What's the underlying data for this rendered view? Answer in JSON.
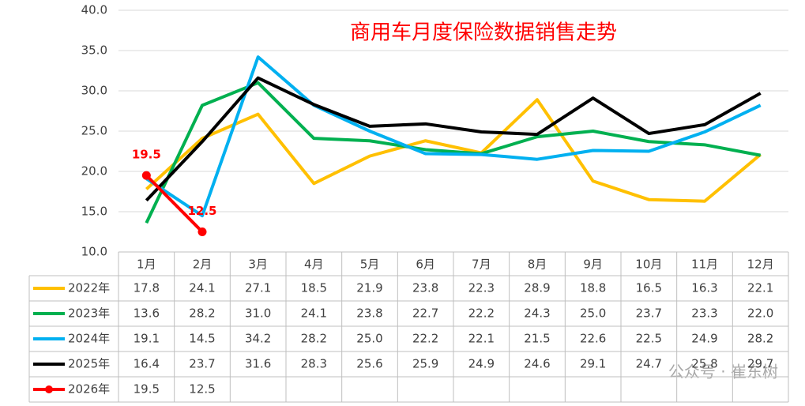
{
  "chart_data": {
    "type": "line",
    "title": "商用车月度保险数据销售走势",
    "categories": [
      "1月",
      "2月",
      "3月",
      "4月",
      "5月",
      "6月",
      "7月",
      "8月",
      "9月",
      "10月",
      "11月",
      "12月"
    ],
    "series": [
      {
        "name": "2022年",
        "color": "#ffc000",
        "values": [
          17.8,
          24.1,
          27.1,
          18.5,
          21.9,
          23.8,
          22.3,
          28.9,
          18.8,
          16.5,
          16.3,
          22.1
        ],
        "value_labels": [
          "17.8",
          "24.1",
          "27.1",
          "18.5",
          "21.9",
          "23.8",
          "22.3",
          "28.9",
          "18.8",
          "16.5",
          "16.3",
          "22.1"
        ]
      },
      {
        "name": "2023年",
        "color": "#00b050",
        "values": [
          13.6,
          28.2,
          31.0,
          24.1,
          23.8,
          22.7,
          22.2,
          24.3,
          25.0,
          23.7,
          23.3,
          22.0
        ],
        "value_labels": [
          "13.6",
          "28.2",
          "31.0",
          "24.1",
          "23.8",
          "22.7",
          "22.2",
          "24.3",
          "25.0",
          "23.7",
          "23.3",
          "22.0"
        ]
      },
      {
        "name": "2024年",
        "color": "#00b0f0",
        "values": [
          19.1,
          14.5,
          34.2,
          28.2,
          25.0,
          22.2,
          22.1,
          21.5,
          22.6,
          22.5,
          24.9,
          28.2
        ],
        "value_labels": [
          "19.1",
          "14.5",
          "34.2",
          "28.2",
          "25.0",
          "22.2",
          "22.1",
          "21.5",
          "22.6",
          "22.5",
          "24.9",
          "28.2"
        ]
      },
      {
        "name": "2025年",
        "color": "#000000",
        "values": [
          16.4,
          23.7,
          31.6,
          28.3,
          25.6,
          25.9,
          24.9,
          24.6,
          29.1,
          24.7,
          25.8,
          29.7
        ],
        "value_labels": [
          "16.4",
          "23.7",
          "31.6",
          "28.3",
          "25.6",
          "25.9",
          "24.9",
          "24.6",
          "29.1",
          "24.7",
          "25.8",
          "29.7"
        ]
      },
      {
        "name": "2026年",
        "color": "#ff0000",
        "markers": true,
        "data_labels": true,
        "values": [
          19.5,
          12.5,
          null,
          null,
          null,
          null,
          null,
          null,
          null,
          null,
          null,
          null
        ],
        "value_labels": [
          "19.5",
          "12.5",
          null,
          null,
          null,
          null,
          null,
          null,
          null,
          null,
          null,
          null
        ]
      }
    ],
    "ylim": [
      10,
      40
    ],
    "yticks": [
      {
        "value": 10,
        "label": "10.0"
      },
      {
        "value": 15,
        "label": "15.0"
      },
      {
        "value": 20,
        "label": "20.0"
      },
      {
        "value": 25,
        "label": "25.0"
      },
      {
        "value": 30,
        "label": "30.0"
      },
      {
        "value": 35,
        "label": "35.0"
      },
      {
        "value": 40,
        "label": "40.0"
      }
    ],
    "grid": true,
    "watermark": "公众号 · 崔东树"
  }
}
